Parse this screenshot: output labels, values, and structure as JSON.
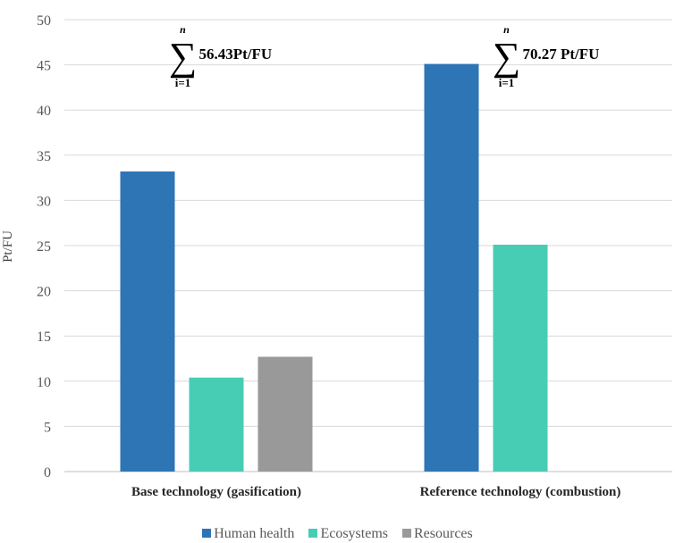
{
  "chart_data": {
    "type": "bar",
    "categories": [
      "Base technology (gasification)",
      "Reference technology (combustion)"
    ],
    "series": [
      {
        "name": "Human health",
        "color": "#2E75B6",
        "values": [
          33.2,
          45.1
        ]
      },
      {
        "name": "Ecosystems",
        "color": "#48CDB5",
        "values": [
          10.4,
          25.1
        ]
      },
      {
        "name": "Resources",
        "color": "#999999",
        "values": [
          12.7,
          null
        ]
      }
    ],
    "ylabel": "Pt/FU",
    "ylim": [
      0,
      50
    ],
    "yticks": [
      0,
      5,
      10,
      15,
      20,
      25,
      30,
      35,
      40,
      45,
      50
    ],
    "grid": true,
    "legend_position": "bottom",
    "annotations": [
      {
        "category": "Base technology (gasification)",
        "sum_upper": "n",
        "sum_lower": "i=1",
        "text": "56.43Pt/FU"
      },
      {
        "category": "Reference technology (combustion)",
        "sum_upper": "n",
        "sum_lower": "i=1",
        "text": "70.27 Pt/FU"
      }
    ]
  }
}
